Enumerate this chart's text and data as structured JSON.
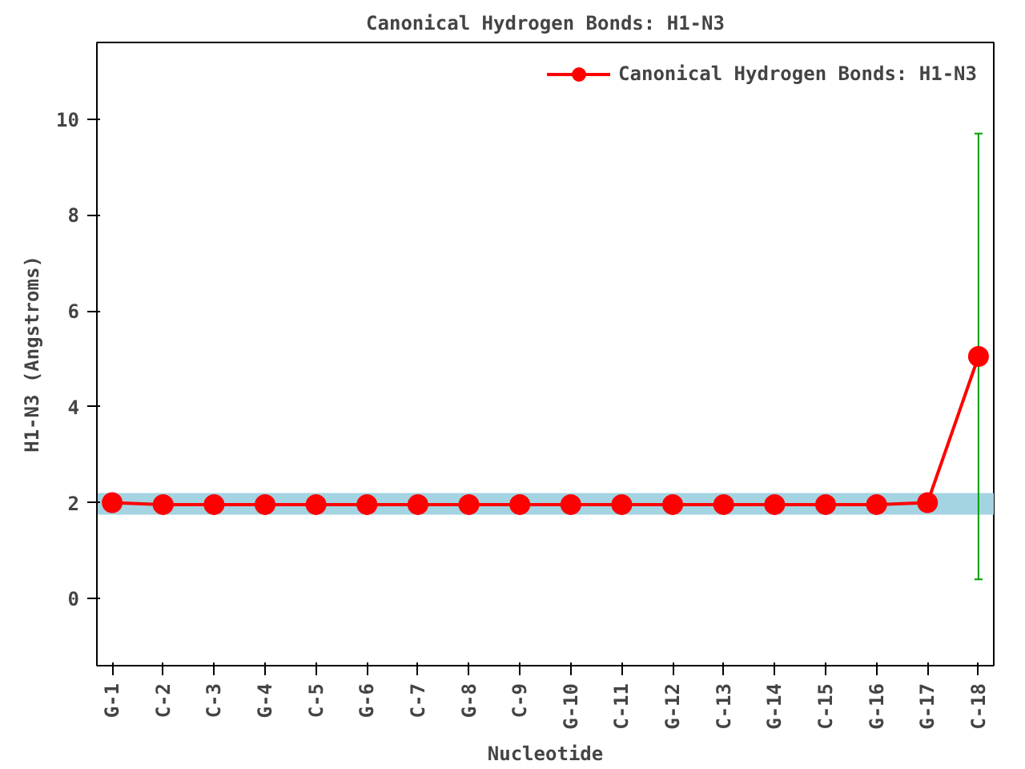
{
  "chart_data": {
    "type": "line",
    "title": "Canonical Hydrogen Bonds: H1-N3",
    "xlabel": "Nucleotide",
    "ylabel": "H1-N3 (Angstroms)",
    "categories": [
      "G-1",
      "C-2",
      "C-3",
      "G-4",
      "C-5",
      "G-6",
      "C-7",
      "G-8",
      "C-9",
      "G-10",
      "C-11",
      "G-12",
      "C-13",
      "G-14",
      "C-15",
      "G-16",
      "G-17",
      "C-18"
    ],
    "series": [
      {
        "name": "Canonical Hydrogen Bonds: H1-N3",
        "color": "#ff0000",
        "values": [
          2.0,
          1.96,
          1.96,
          1.96,
          1.96,
          1.96,
          1.96,
          1.96,
          1.96,
          1.96,
          1.96,
          1.96,
          1.96,
          1.96,
          1.96,
          1.96,
          2.0,
          5.05
        ],
        "errors": [
          null,
          null,
          null,
          null,
          null,
          null,
          null,
          null,
          null,
          null,
          null,
          null,
          null,
          null,
          null,
          null,
          null,
          [
            0.4,
            9.7
          ]
        ]
      }
    ],
    "ylim": [
      -1.4,
      11.6
    ],
    "yticks": [
      0,
      2,
      4,
      6,
      8,
      10
    ],
    "grid": false,
    "legend": "top right",
    "marker": "circle",
    "line_style": "solid",
    "bands": [
      {
        "axis": "y",
        "from": 1.75,
        "to": 2.2,
        "color": "#a4d3e2"
      }
    ]
  }
}
